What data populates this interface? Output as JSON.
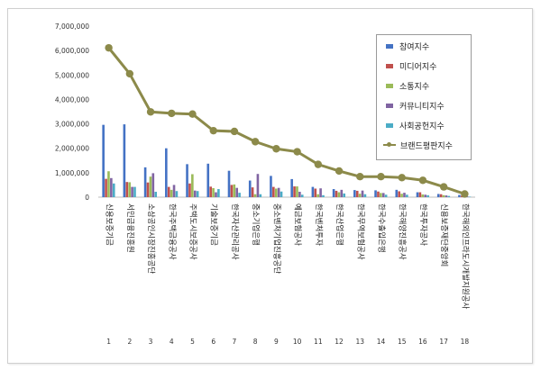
{
  "chart_data": {
    "type": "bar",
    "title": "",
    "xlabel": "",
    "ylabel": "",
    "ylim": [
      0,
      7000000
    ],
    "yticks": [
      "0",
      "1,000,000",
      "2,000,000",
      "3,000,000",
      "4,000,000",
      "5,000,000",
      "6,000,000",
      "7,000,000"
    ],
    "grid": false,
    "legend_position": "top-right",
    "index_labels": [
      "1",
      "2",
      "3",
      "4",
      "5",
      "6",
      "7",
      "8",
      "9",
      "10",
      "11",
      "12",
      "13",
      "14",
      "15",
      "16",
      "17",
      "18"
    ],
    "categories": [
      "신용보증기금",
      "서민금융진흥원",
      "소상공인시장진흥공단",
      "한국주택금융공사",
      "주택도시보증공사",
      "기술보증기금",
      "한국자산관리공사",
      "중소기업은행",
      "중소벤처기업진흥공단",
      "예금보험공사",
      "한국벤처투자",
      "한국산업은행",
      "한국무역보험공사",
      "한국수출입은행",
      "한국해양진흥공사",
      "한국투자공사",
      "신용보증재단중앙회",
      "한국해외인프라도시개발지원공사"
    ],
    "series": [
      {
        "name": "참여지수",
        "color": "#4472c4",
        "kind": "bar",
        "values": [
          2960000,
          2980000,
          1220000,
          2000000,
          1350000,
          1370000,
          1080000,
          680000,
          870000,
          740000,
          420000,
          330000,
          290000,
          280000,
          300000,
          200000,
          130000,
          90000
        ]
      },
      {
        "name": "미디어지수",
        "color": "#c0504d",
        "kind": "bar",
        "values": [
          750000,
          620000,
          600000,
          420000,
          560000,
          430000,
          500000,
          400000,
          420000,
          440000,
          350000,
          260000,
          260000,
          230000,
          240000,
          200000,
          120000,
          60000
        ]
      },
      {
        "name": "소통지수",
        "color": "#9bbb59",
        "kind": "bar",
        "values": [
          1060000,
          610000,
          840000,
          300000,
          940000,
          370000,
          520000,
          120000,
          350000,
          440000,
          120000,
          200000,
          140000,
          170000,
          140000,
          110000,
          80000,
          40000
        ]
      },
      {
        "name": "커뮤니티지수",
        "color": "#8064a2",
        "kind": "bar",
        "values": [
          780000,
          420000,
          980000,
          500000,
          270000,
          200000,
          380000,
          950000,
          380000,
          220000,
          360000,
          300000,
          270000,
          170000,
          180000,
          100000,
          70000,
          30000
        ]
      },
      {
        "name": "사회공헌지수",
        "color": "#4bacc6",
        "kind": "bar",
        "values": [
          560000,
          420000,
          220000,
          250000,
          250000,
          330000,
          180000,
          120000,
          230000,
          100000,
          80000,
          150000,
          120000,
          100000,
          100000,
          80000,
          50000,
          20000
        ]
      },
      {
        "name": "브랜드평판지수",
        "color": "#8c8a4a",
        "kind": "line",
        "values": [
          6110000,
          5050000,
          3490000,
          3430000,
          3400000,
          2720000,
          2690000,
          2270000,
          1980000,
          1860000,
          1340000,
          1070000,
          840000,
          840000,
          800000,
          690000,
          420000,
          130000
        ]
      }
    ]
  }
}
